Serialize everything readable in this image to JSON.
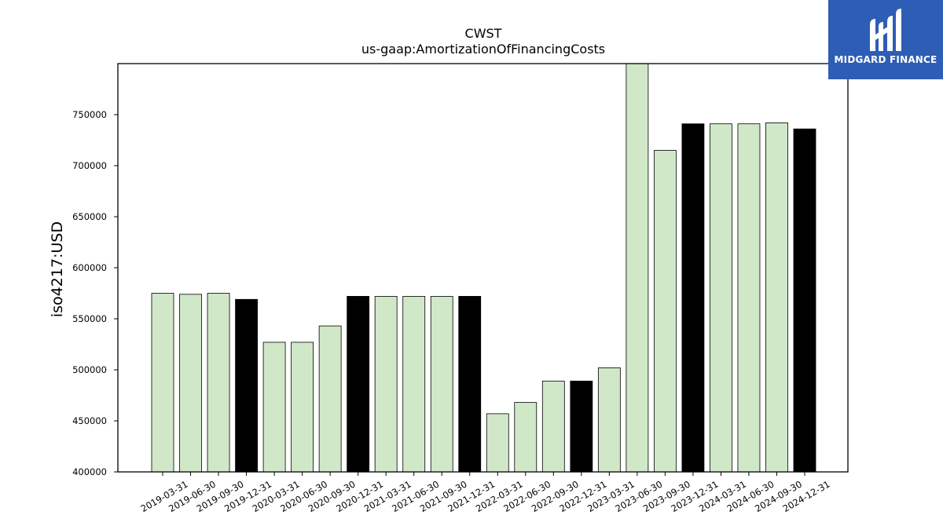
{
  "brand": {
    "name": "MIDGARD FINANCE",
    "bg_color": "#2d5db5"
  },
  "chart_data": {
    "type": "bar",
    "title": "CWST",
    "subtitle": "us-gaap:AmortizationOfFinancingCosts",
    "xlabel": "",
    "ylabel": "iso4217:USD",
    "ylim": [
      400000,
      800000
    ],
    "yticks": [
      400000,
      450000,
      500000,
      550000,
      600000,
      650000,
      700000,
      750000
    ],
    "grid": false,
    "categories": [
      "2019-03-31",
      "2019-06-30",
      "2019-09-30",
      "2019-12-31",
      "2020-03-31",
      "2020-06-30",
      "2020-09-30",
      "2020-12-31",
      "2021-03-31",
      "2021-06-30",
      "2021-09-30",
      "2021-12-31",
      "2022-03-31",
      "2022-06-30",
      "2022-09-30",
      "2022-12-31",
      "2023-03-31",
      "2023-06-30",
      "2023-09-30",
      "2023-12-31",
      "2024-03-31",
      "2024-06-30",
      "2024-09-30",
      "2024-12-31"
    ],
    "values": [
      575000,
      574000,
      575000,
      569000,
      527000,
      527000,
      543000,
      572000,
      572000,
      572000,
      572000,
      572000,
      457000,
      468000,
      489000,
      489000,
      502000,
      800000,
      715000,
      741000,
      741000,
      741000,
      742000,
      736000
    ],
    "highlighted": [
      false,
      false,
      false,
      true,
      false,
      false,
      false,
      true,
      false,
      false,
      false,
      true,
      false,
      false,
      false,
      true,
      false,
      false,
      false,
      true,
      false,
      false,
      false,
      true
    ],
    "colors": {
      "normal": "#d0e8c8",
      "highlight": "#000000",
      "edge": "#000000"
    }
  }
}
